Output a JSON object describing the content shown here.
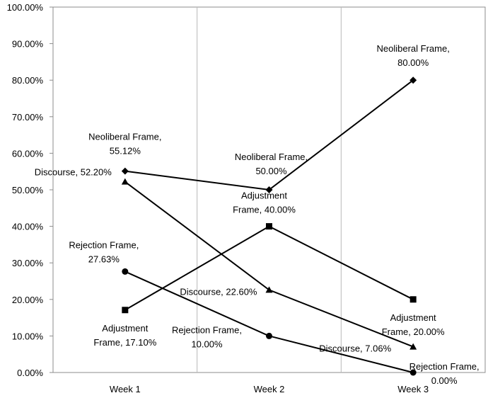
{
  "chart_data": {
    "type": "line",
    "categories": [
      "Week 1",
      "Week 2",
      "Week 3"
    ],
    "ylim": [
      0,
      100
    ],
    "y_ticks": [
      "0.00%",
      "10.00%",
      "20.00%",
      "30.00%",
      "40.00%",
      "50.00%",
      "60.00%",
      "70.00%",
      "80.00%",
      "90.00%",
      "100.00%"
    ],
    "grid": "vertical",
    "legend": "none",
    "series": [
      {
        "name": "Neoliberal Frame",
        "marker": "diamond",
        "values": [
          55.12,
          50.0,
          80.0
        ],
        "labels": [
          [
            "Neoliberal Frame,",
            "55.12%"
          ],
          [
            "Neoliberal Frame,",
            "50.00%"
          ],
          [
            "Neoliberal Frame,",
            "80.00%"
          ]
        ]
      },
      {
        "name": "Discourse",
        "marker": "triangle",
        "values": [
          52.2,
          22.6,
          7.06
        ],
        "labels": [
          [
            "Discourse, 52.20%"
          ],
          [
            "Discourse, 22.60%"
          ],
          [
            "Discourse, 7.06%"
          ]
        ]
      },
      {
        "name": "Adjustment Frame",
        "marker": "square",
        "values": [
          17.1,
          40.0,
          20.0
        ],
        "labels": [
          [
            "Adjustment",
            "Frame, 17.10%"
          ],
          [
            "Adjustment",
            "Frame, 40.00%"
          ],
          [
            "Adjustment",
            "Frame, 20.00%"
          ]
        ]
      },
      {
        "name": "Rejection Frame",
        "marker": "circle",
        "values": [
          27.63,
          10.0,
          0.0
        ],
        "labels": [
          [
            "Rejection Frame,",
            "27.63%"
          ],
          [
            "Rejection Frame,",
            "10.00%"
          ],
          [
            "Rejection Frame,",
            "0.00%"
          ]
        ]
      }
    ]
  }
}
